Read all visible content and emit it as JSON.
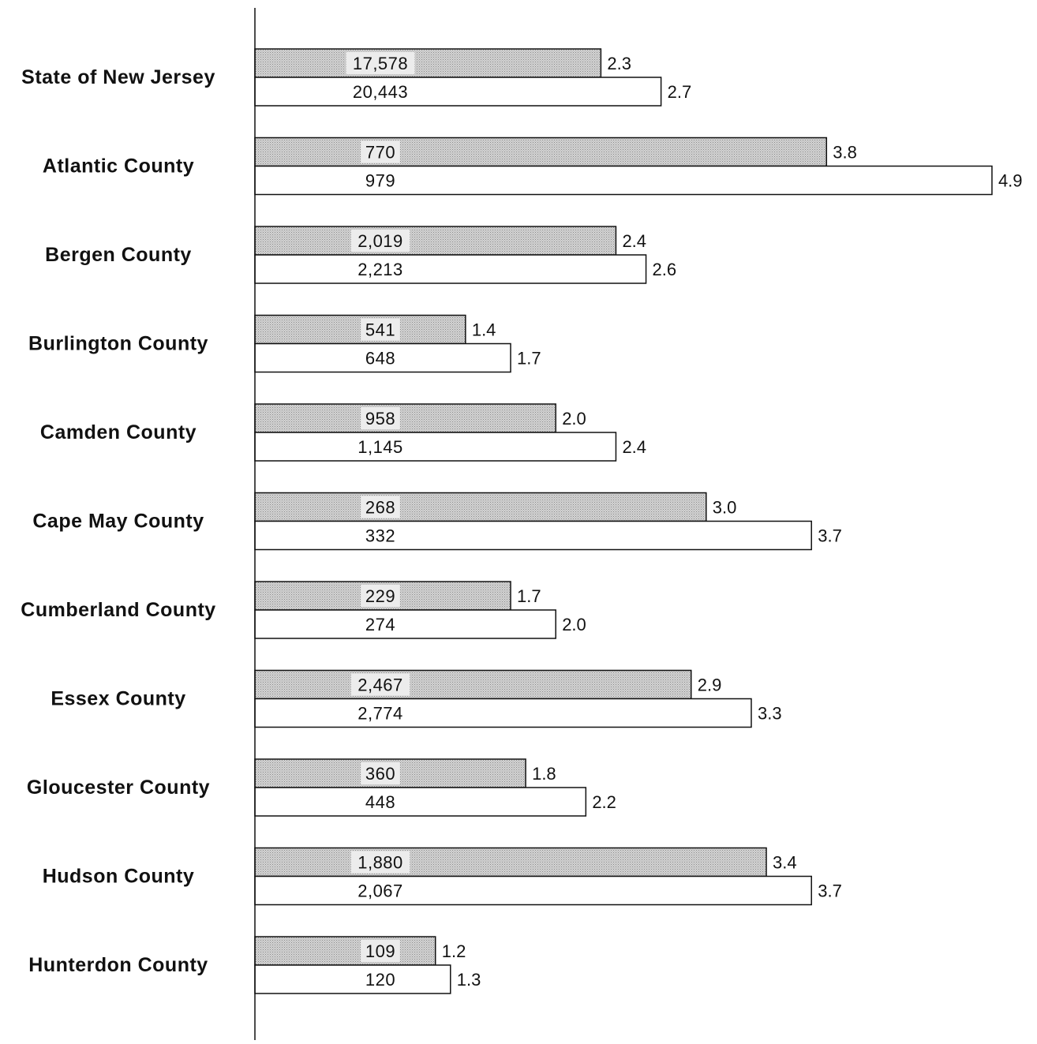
{
  "chart_data": {
    "type": "bar",
    "orientation": "horizontal",
    "categories": [
      "State of New Jersey",
      "Atlantic County",
      "Bergen County",
      "Burlington County",
      "Camden County",
      "Cape May County",
      "Cumberland County",
      "Essex County",
      "Gloucester County",
      "Hudson County",
      "Hunterdon County"
    ],
    "series": [
      {
        "fill": "#c8c8c8",
        "pattern": "dotted-gray",
        "counts": [
          "17,578",
          "770",
          "2,019",
          "541",
          "958",
          "268",
          "229",
          "2,467",
          "360",
          "1,880",
          "109"
        ],
        "values": [
          2.3,
          3.8,
          2.4,
          1.4,
          2.0,
          3.0,
          1.7,
          2.9,
          1.8,
          3.4,
          1.2
        ],
        "value_labels": [
          "2.3",
          "3.8",
          "2.4",
          "1.4",
          "2.0",
          "3.0",
          "1.7",
          "2.9",
          "1.8",
          "3.4",
          "1.2"
        ]
      },
      {
        "fill": "#ffffff",
        "pattern": "white",
        "counts": [
          "20,443",
          "979",
          "2,213",
          "648",
          "1,145",
          "332",
          "274",
          "2,774",
          "448",
          "2,067",
          "120"
        ],
        "values": [
          2.7,
          4.9,
          2.6,
          1.7,
          2.4,
          3.7,
          2.0,
          3.3,
          2.2,
          3.7,
          1.3
        ],
        "value_labels": [
          "2.7",
          "4.9",
          "2.6",
          "1.7",
          "2.4",
          "3.7",
          "2.0",
          "3.3",
          "2.2",
          "3.7",
          "1.3"
        ]
      }
    ],
    "xlim": [
      0,
      4.9
    ],
    "grid": false,
    "legend": "none"
  }
}
